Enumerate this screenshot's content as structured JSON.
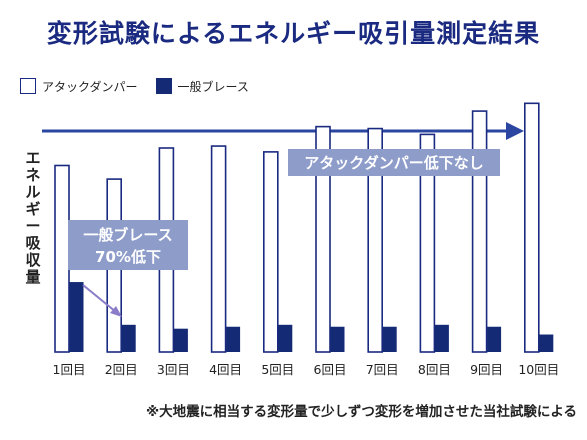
{
  "title": "変形試験によるエネルギー吸引量測定結果",
  "legend": {
    "damper": "アタックダンパー",
    "brace": "一般ブレース"
  },
  "ylabel": "エネルギー吸収量",
  "footnote": "※大地震に相当する変形量で少しずつ変形を増加させた当社試験による",
  "annotations": {
    "damper_note": "アタックダンパー低下なし",
    "brace_note_line1": "一般ブレース",
    "brace_note_line2": "70%低下"
  },
  "colors": {
    "title": "#1a2a80",
    "brace": "#152a74",
    "damper_outline": "#1a2a80",
    "arrow": "#2a46a0",
    "annotation_box": "#8e9cc9",
    "pointer": "#8a7cc8"
  },
  "chart_data": {
    "type": "bar",
    "categories": [
      "1回目",
      "2回目",
      "3回目",
      "4回目",
      "5回目",
      "6回目",
      "7回目",
      "8回目",
      "9回目",
      "10回目"
    ],
    "series": [
      {
        "name": "アタックダンパー",
        "values": [
          96,
          89,
          105,
          106,
          103,
          116,
          115,
          112,
          124,
          128
        ]
      },
      {
        "name": "一般ブレース",
        "values": [
          36,
          14,
          12,
          13,
          14,
          13,
          13,
          14,
          13,
          9
        ]
      }
    ],
    "ylim": [
      0,
      140
    ],
    "grid": false,
    "legend_position": "top-left"
  }
}
